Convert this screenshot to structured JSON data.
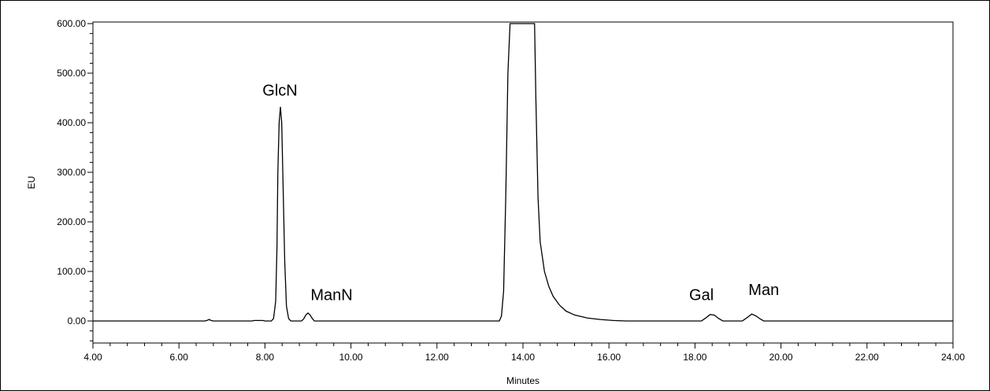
{
  "chart_data": {
    "type": "line",
    "title": "",
    "xlabel": "Minutes",
    "ylabel": "EU",
    "xlim": [
      4.0,
      24.0
    ],
    "ylim": [
      -45,
      600
    ],
    "x_ticks": [
      4.0,
      6.0,
      8.0,
      10.0,
      12.0,
      14.0,
      16.0,
      18.0,
      20.0,
      22.0,
      24.0
    ],
    "x_tick_labels": [
      "4.00",
      "6.00",
      "8.00",
      "10.00",
      "12.00",
      "14.00",
      "16.00",
      "18.00",
      "20.00",
      "22.00",
      "24.00"
    ],
    "y_ticks": [
      0,
      100,
      200,
      300,
      400,
      500,
      600
    ],
    "y_tick_labels": [
      "0.00",
      "100.00",
      "200.00",
      "300.00",
      "400.00",
      "500.00",
      "600.00"
    ],
    "grid": false,
    "line_color": "#000000",
    "series": [
      {
        "points": [
          [
            4.0,
            0
          ],
          [
            6.6,
            0
          ],
          [
            6.65,
            1
          ],
          [
            6.7,
            3
          ],
          [
            6.75,
            1
          ],
          [
            6.8,
            0
          ],
          [
            7.7,
            0
          ],
          [
            7.75,
            1
          ],
          [
            7.95,
            1
          ],
          [
            8.0,
            0
          ],
          [
            8.15,
            0
          ],
          [
            8.2,
            5
          ],
          [
            8.25,
            40
          ],
          [
            8.28,
            150
          ],
          [
            8.3,
            300
          ],
          [
            8.33,
            400
          ],
          [
            8.36,
            432
          ],
          [
            8.39,
            400
          ],
          [
            8.42,
            280
          ],
          [
            8.46,
            120
          ],
          [
            8.5,
            30
          ],
          [
            8.55,
            5
          ],
          [
            8.6,
            0
          ],
          [
            8.85,
            0
          ],
          [
            8.9,
            4
          ],
          [
            8.95,
            12
          ],
          [
            9.0,
            16
          ],
          [
            9.05,
            12
          ],
          [
            9.1,
            5
          ],
          [
            9.15,
            0
          ],
          [
            13.45,
            0
          ],
          [
            13.5,
            10
          ],
          [
            13.55,
            60
          ],
          [
            13.6,
            250
          ],
          [
            13.65,
            500
          ],
          [
            13.7,
            600
          ],
          [
            14.27,
            600
          ],
          [
            14.3,
            450
          ],
          [
            14.35,
            250
          ],
          [
            14.4,
            160
          ],
          [
            14.5,
            100
          ],
          [
            14.6,
            70
          ],
          [
            14.7,
            50
          ],
          [
            14.85,
            32
          ],
          [
            15.0,
            20
          ],
          [
            15.2,
            12
          ],
          [
            15.5,
            6
          ],
          [
            15.8,
            3
          ],
          [
            16.1,
            1
          ],
          [
            16.4,
            0
          ],
          [
            18.15,
            0
          ],
          [
            18.25,
            6
          ],
          [
            18.35,
            13
          ],
          [
            18.45,
            12
          ],
          [
            18.55,
            5
          ],
          [
            18.65,
            0
          ],
          [
            19.1,
            0
          ],
          [
            19.2,
            6
          ],
          [
            19.32,
            14
          ],
          [
            19.42,
            10
          ],
          [
            19.52,
            4
          ],
          [
            19.6,
            0
          ],
          [
            24.0,
            0
          ]
        ]
      }
    ],
    "annotations": [
      {
        "text": "GlcN",
        "x": 8.35,
        "y": 455
      },
      {
        "text": "ManN",
        "x": 9.55,
        "y": 42
      },
      {
        "text": "Gal",
        "x": 18.15,
        "y": 42
      },
      {
        "text": "Man",
        "x": 19.6,
        "y": 52
      }
    ]
  }
}
